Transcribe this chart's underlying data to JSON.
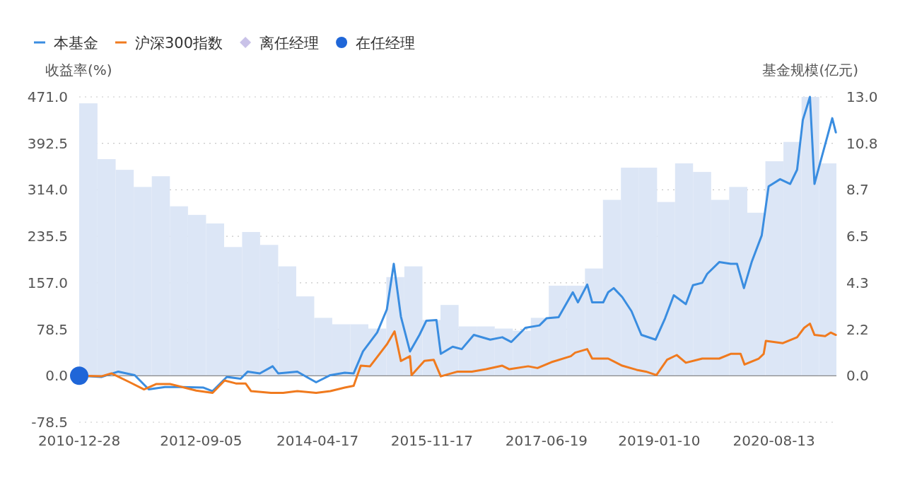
{
  "chart_data": {
    "type": "line",
    "legend": "top left",
    "grid": "y",
    "marker": "none",
    "ylabel": "收益率(%)",
    "y2label": "基金规模(亿元)",
    "xlim": [
      "2010-12-28",
      "2021-06-25"
    ],
    "xticks": [
      "2010-12-28",
      "2012-09-05",
      "2014-04-17",
      "2015-11-17",
      "2017-06-19",
      "2019-01-10",
      "2020-08-13"
    ],
    "ylim": [
      -78.5,
      471
    ],
    "yticks": [
      {
        "value": -78.5,
        "label": "-78.5"
      },
      {
        "value": 0,
        "label": "0.0"
      },
      {
        "value": 78.5,
        "label": "78.5"
      },
      {
        "value": 157,
        "label": "157.0"
      },
      {
        "value": 235.5,
        "label": "235.5"
      },
      {
        "value": 314,
        "label": "314.0"
      },
      {
        "value": 392.5,
        "label": "392.5"
      },
      {
        "value": 471,
        "label": "471.0"
      }
    ],
    "y2lim": [
      -2.1667,
      13
    ],
    "y2ticks": [
      {
        "value": 0,
        "label": "0.0"
      },
      {
        "value": 2.1667,
        "label": "2.2"
      },
      {
        "value": 4.3333,
        "label": "4.3"
      },
      {
        "value": 6.5,
        "label": "6.5"
      },
      {
        "value": 8.6667,
        "label": "8.7"
      },
      {
        "value": 10.8333,
        "label": "10.8"
      },
      {
        "value": 13,
        "label": "13.0"
      }
    ],
    "series": [
      {
        "type": "bar",
        "axis": "y2",
        "color": "#dce6f6",
        "x": [
          "2011-02-12",
          "2011-05-16",
          "2011-08-15",
          "2011-11-15",
          "2012-02-14",
          "2012-05-16",
          "2012-08-15",
          "2012-11-15",
          "2013-02-14",
          "2013-05-16",
          "2013-08-15",
          "2013-11-15",
          "2014-02-14",
          "2014-05-16",
          "2014-08-15",
          "2014-11-15",
          "2015-02-14",
          "2015-05-16",
          "2015-08-15",
          "2015-11-15",
          "2016-02-14",
          "2016-05-16",
          "2016-08-15",
          "2016-11-15",
          "2017-02-14",
          "2017-05-16",
          "2017-08-15",
          "2017-11-15",
          "2018-02-14",
          "2018-05-16",
          "2018-08-15",
          "2018-11-15",
          "2019-02-14",
          "2019-05-16",
          "2019-08-15",
          "2019-11-15",
          "2020-02-14",
          "2020-05-16",
          "2020-08-15",
          "2020-11-15",
          "2021-02-14",
          "2021-05-13"
        ],
        "values": [
          12.7,
          10.1,
          9.6,
          8.8,
          9.3,
          7.9,
          7.5,
          7.1,
          6.0,
          6.7,
          6.1,
          5.1,
          3.7,
          2.7,
          2.4,
          2.4,
          2.2,
          4.6,
          5.1,
          2.6,
          3.3,
          2.3,
          2.3,
          2.2,
          2.1,
          2.7,
          4.2,
          4.2,
          5.0,
          8.2,
          9.7,
          9.7,
          8.1,
          9.9,
          9.5,
          8.2,
          8.8,
          7.6,
          10.0,
          10.9,
          13.0,
          9.9
        ]
      },
      {
        "name": "本基金",
        "color": "#3a8de0",
        "x": [
          "2010-12-28",
          "2011-04-19",
          "2011-07-14",
          "2011-10-05",
          "2011-12-15",
          "2012-03-06",
          "2012-06-01",
          "2012-09-17",
          "2012-11-02",
          "2013-01-13",
          "2013-03-24",
          "2013-04-29",
          "2013-06-29",
          "2013-09-02",
          "2013-09-30",
          "2014-01-05",
          "2014-02-21",
          "2014-04-10",
          "2014-06-21",
          "2014-09-02",
          "2014-10-17",
          "2014-12-03",
          "2015-02-13",
          "2015-04-03",
          "2015-05-08",
          "2015-06-13",
          "2015-07-29",
          "2015-09-15",
          "2015-10-20",
          "2015-12-10",
          "2016-01-01",
          "2016-03-01",
          "2016-04-16",
          "2016-06-16",
          "2016-09-07",
          "2016-11-07",
          "2016-12-23",
          "2017-03-04",
          "2017-05-14",
          "2017-06-19",
          "2017-08-19",
          "2017-10-30",
          "2017-11-25",
          "2018-01-11",
          "2018-02-05",
          "2018-04-02",
          "2018-04-27",
          "2018-05-25",
          "2018-07-07",
          "2018-08-23",
          "2018-10-12",
          "2018-12-23",
          "2019-02-09",
          "2019-03-25",
          "2019-05-25",
          "2019-06-30",
          "2019-08-16",
          "2019-09-10",
          "2019-11-10",
          "2020-01-07",
          "2020-02-08",
          "2020-03-14",
          "2020-04-22",
          "2020-06-12",
          "2020-07-17",
          "2020-09-13",
          "2020-11-03",
          "2020-12-08",
          "2021-01-06",
          "2021-02-11",
          "2021-03-06",
          "2021-04-04",
          "2021-05-10",
          "2021-06-04",
          "2021-06-22"
        ],
        "values": [
          0,
          -2,
          7,
          1,
          -23,
          -19,
          -19,
          -20,
          -26,
          -2,
          -5,
          7,
          4,
          16,
          4,
          7,
          -2,
          -11,
          1,
          5,
          4,
          41,
          73,
          112,
          189,
          100,
          41,
          69,
          93,
          94,
          37,
          49,
          45,
          69,
          61,
          65,
          57,
          81,
          85,
          97,
          99,
          141,
          124,
          154,
          124,
          124,
          141,
          148,
          133,
          109,
          69,
          61,
          97,
          136,
          121,
          153,
          157,
          172,
          192,
          189,
          189,
          148,
          192,
          237,
          320,
          332,
          324,
          348,
          432,
          471,
          324,
          360,
          404,
          435,
          411
        ]
      },
      {
        "name": "沪深300指数",
        "color": "#f07a1e",
        "x": [
          "2010-12-28",
          "2011-04-19",
          "2011-06-09",
          "2011-09-10",
          "2011-11-21",
          "2012-01-21",
          "2012-04-01",
          "2012-06-01",
          "2012-08-11",
          "2012-11-02",
          "2013-01-02",
          "2013-02-28",
          "2013-04-18",
          "2013-05-16",
          "2013-08-25",
          "2013-10-25",
          "2014-01-05",
          "2014-04-10",
          "2014-06-21",
          "2014-09-02",
          "2014-10-17",
          "2014-11-22",
          "2015-01-08",
          "2015-04-03",
          "2015-05-12",
          "2015-06-13",
          "2015-07-29",
          "2015-08-06",
          "2015-10-10",
          "2015-11-26",
          "2016-01-01",
          "2016-03-26",
          "2016-06-06",
          "2016-08-17",
          "2016-11-07",
          "2016-12-13",
          "2017-03-18",
          "2017-05-04",
          "2017-07-14",
          "2017-10-20",
          "2017-11-11",
          "2018-01-11",
          "2018-02-05",
          "2018-04-27",
          "2018-07-07",
          "2018-09-18",
          "2018-11-04",
          "2018-12-27",
          "2019-02-19",
          "2019-04-09",
          "2019-05-25",
          "2019-08-16",
          "2019-11-10",
          "2020-01-07",
          "2020-02-26",
          "2020-03-17",
          "2020-05-28",
          "2020-06-22",
          "2020-07-03",
          "2020-09-27",
          "2020-12-08",
          "2021-01-13",
          "2021-02-11",
          "2021-03-06",
          "2021-04-29",
          "2021-05-27",
          "2021-06-22"
        ],
        "values": [
          0,
          -1,
          4,
          -11,
          -23,
          -14,
          -14,
          -19,
          -25,
          -29,
          -8,
          -13,
          -13,
          -26,
          -29,
          -29,
          -26,
          -29,
          -26,
          -20,
          -17,
          17,
          16,
          53,
          75,
          25,
          33,
          1,
          25,
          27,
          -1,
          7,
          7,
          11,
          17,
          11,
          16,
          13,
          23,
          33,
          39,
          45,
          29,
          29,
          17,
          10,
          7,
          1,
          27,
          35,
          22,
          29,
          29,
          37,
          37,
          19,
          29,
          37,
          59,
          55,
          65,
          81,
          88,
          69,
          67,
          73,
          69
        ]
      },
      {
        "name": "离任经理",
        "type": "scatter",
        "color": "#c9c2e8",
        "marker": "diamond"
      },
      {
        "name": "在任经理",
        "type": "scatter",
        "color": "#1f66d8",
        "marker": "circle",
        "x": [
          "2010-12-28"
        ],
        "values": [
          0
        ]
      }
    ]
  }
}
